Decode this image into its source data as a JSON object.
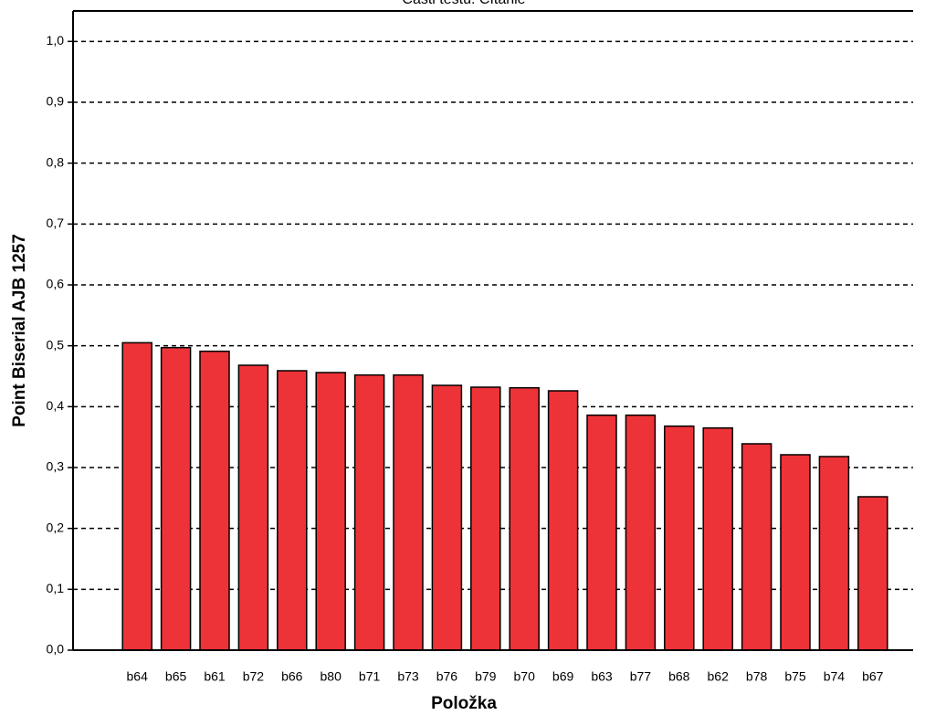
{
  "chart_data": {
    "type": "bar",
    "title": "Časti testu: Čítanie",
    "x_label": "Položka",
    "y_label": "Point Biserial AJB 1257",
    "categories": [
      "b64",
      "b65",
      "b61",
      "b72",
      "b66",
      "b80",
      "b71",
      "b73",
      "b76",
      "b79",
      "b70",
      "b69",
      "b63",
      "b77",
      "b68",
      "b62",
      "b78",
      "b75",
      "b74",
      "b67"
    ],
    "values": [
      0.505,
      0.497,
      0.491,
      0.468,
      0.459,
      0.456,
      0.452,
      0.452,
      0.435,
      0.432,
      0.431,
      0.426,
      0.386,
      0.386,
      0.368,
      0.365,
      0.339,
      0.321,
      0.318,
      0.252
    ],
    "color": "#ee3338",
    "ylim": [
      0,
      1.05
    ],
    "yticks": [
      {
        "value": 0,
        "label": "0,0"
      },
      {
        "value": 0.1,
        "label": "0,1"
      },
      {
        "value": 0.2,
        "label": "0,2"
      },
      {
        "value": 0.3,
        "label": "0,3"
      },
      {
        "value": 0.4,
        "label": "0,4"
      },
      {
        "value": 0.5,
        "label": "0,5"
      },
      {
        "value": 0.6,
        "label": "0,6"
      },
      {
        "value": 0.7,
        "label": "0,7"
      },
      {
        "value": 0.8,
        "label": "0,8"
      },
      {
        "value": 0.9,
        "label": "0,9"
      },
      {
        "value": 1.0,
        "label": "1,0"
      }
    ],
    "grid": true
  }
}
